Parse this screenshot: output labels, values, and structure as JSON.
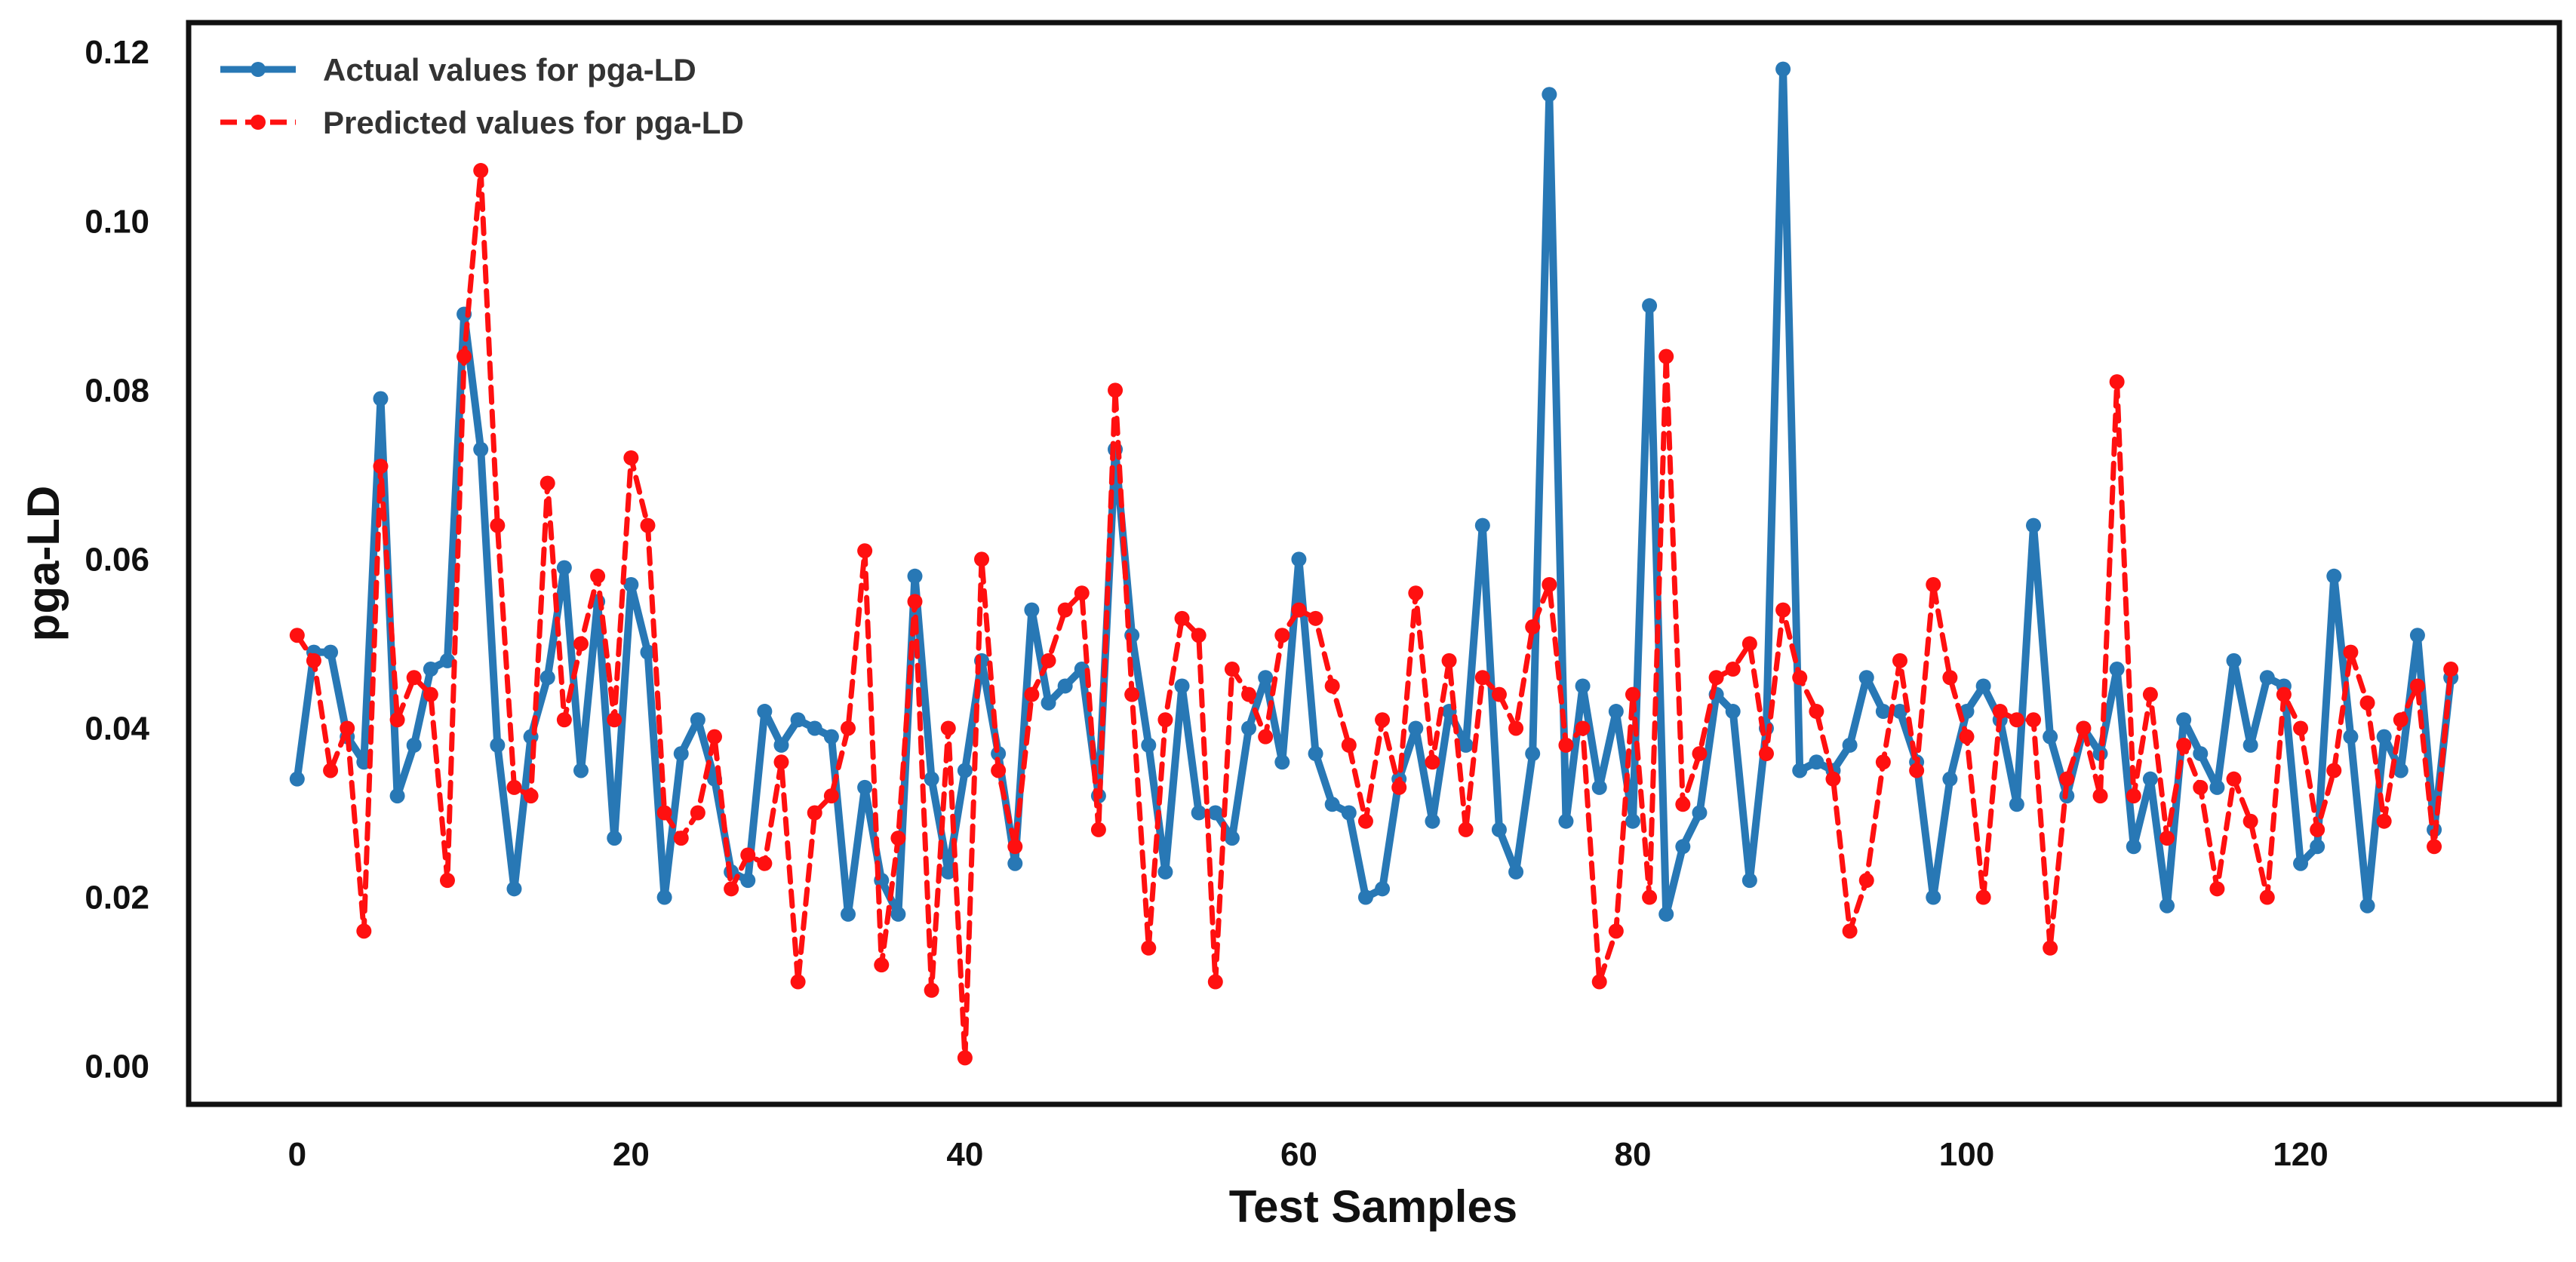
{
  "chart_data": {
    "type": "line",
    "title": "",
    "xlabel": "Test Samples",
    "ylabel": "pga-LD",
    "xlim": [
      -6.5,
      135.5
    ],
    "ylim": [
      -0.0045,
      0.1235
    ],
    "x_ticks": [
      0,
      20,
      40,
      60,
      80,
      100,
      120
    ],
    "x_tick_labels": [
      "0",
      "20",
      "40",
      "60",
      "80",
      "100",
      "120"
    ],
    "y_ticks": [
      0.0,
      0.02,
      0.04,
      0.06,
      0.08,
      0.1,
      0.12
    ],
    "y_tick_labels": [
      "0.00",
      "0.02",
      "0.04",
      "0.06",
      "0.08",
      "0.10",
      "0.12"
    ],
    "grid": false,
    "legend_position": "top-left",
    "series": [
      {
        "name": "Actual values for pga-LD",
        "color": "#2878b5",
        "style": "solid",
        "marker": "circle",
        "values": [
          0.034,
          0.049,
          0.049,
          0.039,
          0.036,
          0.079,
          0.032,
          0.038,
          0.047,
          0.048,
          0.089,
          0.073,
          0.038,
          0.021,
          0.039,
          0.046,
          0.059,
          0.035,
          0.055,
          0.027,
          0.057,
          0.049,
          0.02,
          0.037,
          0.041,
          0.034,
          0.023,
          0.022,
          0.042,
          0.038,
          0.041,
          0.04,
          0.039,
          0.018,
          0.033,
          0.022,
          0.018,
          0.058,
          0.034,
          0.023,
          0.035,
          0.048,
          0.037,
          0.024,
          0.054,
          0.043,
          0.045,
          0.047,
          0.032,
          0.073,
          0.051,
          0.038,
          0.023,
          0.045,
          0.03,
          0.03,
          0.027,
          0.04,
          0.046,
          0.036,
          0.06,
          0.037,
          0.031,
          0.03,
          0.02,
          0.021,
          0.034,
          0.04,
          0.029,
          0.042,
          0.038,
          0.064,
          0.028,
          0.023,
          0.037,
          0.115,
          0.029,
          0.045,
          0.033,
          0.042,
          0.029,
          0.09,
          0.018,
          0.026,
          0.03,
          0.044,
          0.042,
          0.022,
          0.04,
          0.118,
          0.035,
          0.036,
          0.035,
          0.038,
          0.046,
          0.042,
          0.042,
          0.036,
          0.02,
          0.034,
          0.042,
          0.045,
          0.041,
          0.031,
          0.064,
          0.039,
          0.032,
          0.04,
          0.037,
          0.047,
          0.026,
          0.034,
          0.019,
          0.041,
          0.037,
          0.033,
          0.048,
          0.038,
          0.046,
          0.045,
          0.024,
          0.026,
          0.058,
          0.039,
          0.019,
          0.039,
          0.035,
          0.051,
          0.028,
          0.046
        ]
      },
      {
        "name": "Predicted values for pga-LD",
        "color": "#ff1010",
        "style": "dashed",
        "marker": "circle",
        "values": [
          0.051,
          0.048,
          0.035,
          0.04,
          0.016,
          0.071,
          0.041,
          0.046,
          0.044,
          0.022,
          0.084,
          0.106,
          0.064,
          0.033,
          0.032,
          0.069,
          0.041,
          0.05,
          0.058,
          0.041,
          0.072,
          0.064,
          0.03,
          0.027,
          0.03,
          0.039,
          0.021,
          0.025,
          0.024,
          0.036,
          0.01,
          0.03,
          0.032,
          0.04,
          0.061,
          0.012,
          0.027,
          0.055,
          0.009,
          0.04,
          0.001,
          0.06,
          0.035,
          0.026,
          0.044,
          0.048,
          0.054,
          0.056,
          0.028,
          0.08,
          0.044,
          0.014,
          0.041,
          0.053,
          0.051,
          0.01,
          0.047,
          0.044,
          0.039,
          0.051,
          0.054,
          0.053,
          0.045,
          0.038,
          0.029,
          0.041,
          0.033,
          0.056,
          0.036,
          0.048,
          0.028,
          0.046,
          0.044,
          0.04,
          0.052,
          0.057,
          0.038,
          0.04,
          0.01,
          0.016,
          0.044,
          0.02,
          0.084,
          0.031,
          0.037,
          0.046,
          0.047,
          0.05,
          0.037,
          0.054,
          0.046,
          0.042,
          0.034,
          0.016,
          0.022,
          0.036,
          0.048,
          0.035,
          0.057,
          0.046,
          0.039,
          0.02,
          0.042,
          0.041,
          0.041,
          0.014,
          0.034,
          0.04,
          0.032,
          0.081,
          0.032,
          0.044,
          0.027,
          0.038,
          0.033,
          0.021,
          0.034,
          0.029,
          0.02,
          0.044,
          0.04,
          0.028,
          0.035,
          0.049,
          0.043,
          0.029,
          0.041,
          0.045,
          0.026,
          0.047
        ]
      }
    ]
  }
}
